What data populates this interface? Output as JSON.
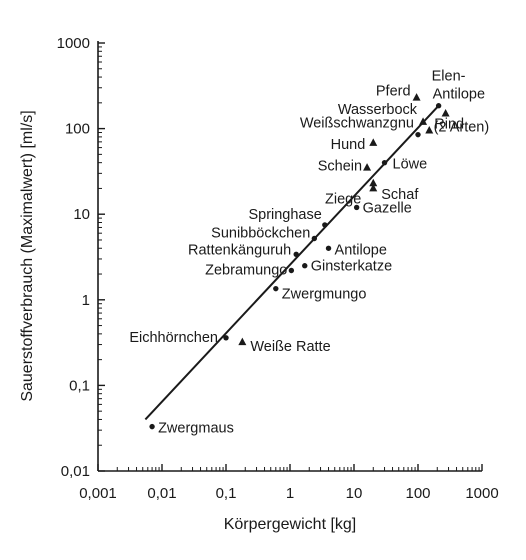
{
  "chart_data": {
    "type": "scatter",
    "xlabel": "Körpergewicht [kg]",
    "ylabel": "Sauerstoffverbrauch (Maximalwert) [ml/s]",
    "xscale": "log",
    "yscale": "log",
    "xlim": [
      0.001,
      1000
    ],
    "ylim": [
      0.01,
      1000
    ],
    "x_tick_labels": [
      "0,001",
      "0,01",
      "0,1",
      "1",
      "10",
      "100",
      "1000"
    ],
    "y_tick_labels": [
      "0,01",
      "0,1",
      "1",
      "10",
      "100",
      "1000"
    ],
    "grid": false,
    "legend": "none",
    "marker_types": {
      "circle": "circle",
      "triangle": "triangle"
    },
    "points": [
      {
        "label": "Zwergmaus",
        "x": 0.007,
        "y": 0.033,
        "marker": "circle"
      },
      {
        "label": "Eichhörnchen",
        "x": 0.1,
        "y": 0.36,
        "marker": "circle"
      },
      {
        "label": "Weiße Ratte",
        "x": 0.18,
        "y": 0.32,
        "marker": "triangle"
      },
      {
        "label": "Zwergmungo",
        "x": 0.6,
        "y": 1.35,
        "marker": "circle"
      },
      {
        "label": "Zebramungo",
        "x": 1.05,
        "y": 2.2,
        "marker": "circle"
      },
      {
        "label": "Rattenkänguruh",
        "x": 1.25,
        "y": 3.4,
        "marker": "circle"
      },
      {
        "label": "Ginsterkatze",
        "x": 1.7,
        "y": 2.5,
        "marker": "circle"
      },
      {
        "label": "Sunibböckchen",
        "x": 2.4,
        "y": 5.2,
        "marker": "circle"
      },
      {
        "label": "Springhase",
        "x": 3.5,
        "y": 7.5,
        "marker": "circle"
      },
      {
        "label": "Antilope",
        "x": 4.0,
        "y": 4.0,
        "marker": "circle"
      },
      {
        "label": "Gazelle",
        "x": 11.0,
        "y": 12.0,
        "marker": "circle"
      },
      {
        "label": "Ziege",
        "x": 20.0,
        "y": 20.0,
        "marker": "triangle"
      },
      {
        "label": "Schaf",
        "x": 20.0,
        "y": 23.0,
        "marker": "triangle"
      },
      {
        "label": "Schein",
        "x": 16.0,
        "y": 35.0,
        "marker": "triangle"
      },
      {
        "label": "Löwe",
        "x": 30.0,
        "y": 40.0,
        "marker": "circle"
      },
      {
        "label": "Hund",
        "x": 20.0,
        "y": 68.0,
        "marker": "triangle"
      },
      {
        "label": "Weißschwanzgnu",
        "x": 100.0,
        "y": 85.0,
        "marker": "circle"
      },
      {
        "label": "Rind",
        "x": 150.0,
        "y": 95.0,
        "marker": "triangle"
      },
      {
        "label": "(2 Arten)",
        "x": 270.0,
        "y": 150.0,
        "marker": "triangle"
      },
      {
        "label": "Wasserbock",
        "x": 120.0,
        "y": 120.0,
        "marker": "triangle"
      },
      {
        "label": "Pferd",
        "x": 95.0,
        "y": 230.0,
        "marker": "triangle"
      },
      {
        "label": "Elen-",
        "x": 210.0,
        "y": 185.0,
        "marker": "circle"
      },
      {
        "label": "Antilope",
        "x": 210.0,
        "y": 185.0,
        "marker": "circle"
      }
    ],
    "regression_line": {
      "x": [
        0.0055,
        210
      ],
      "y": [
        0.04,
        185
      ]
    }
  }
}
